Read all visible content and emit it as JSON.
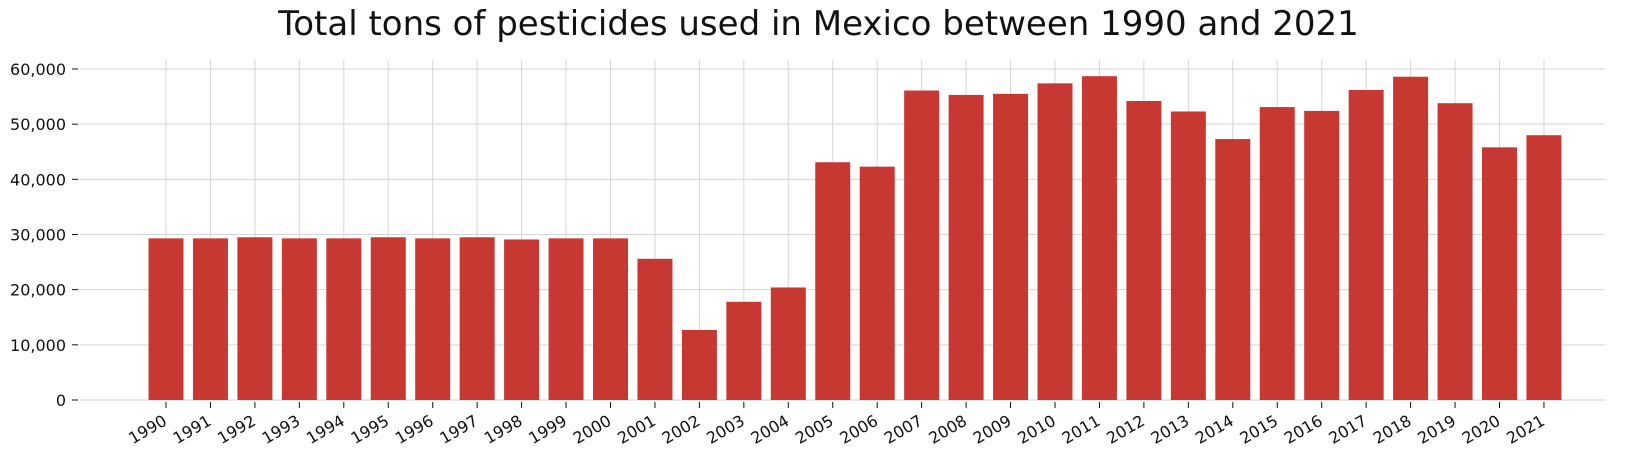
{
  "chart_data": {
    "type": "bar",
    "title": "Total tons of pesticides used in Mexico between 1990 and 2021",
    "xlabel": "",
    "ylabel": "",
    "categories": [
      "1990",
      "1991",
      "1992",
      "1993",
      "1994",
      "1995",
      "1996",
      "1997",
      "1998",
      "1999",
      "2000",
      "2001",
      "2002",
      "2003",
      "2004",
      "2005",
      "2006",
      "2007",
      "2008",
      "2009",
      "2010",
      "2011",
      "2012",
      "2013",
      "2014",
      "2015",
      "2016",
      "2017",
      "2018",
      "2019",
      "2020",
      "2021"
    ],
    "values": [
      29300,
      29300,
      29500,
      29300,
      29300,
      29500,
      29300,
      29500,
      29100,
      29300,
      29300,
      25600,
      12700,
      17800,
      20400,
      43100,
      42300,
      56100,
      55300,
      55500,
      57400,
      58700,
      54200,
      52300,
      47300,
      53100,
      52400,
      56200,
      58600,
      53800,
      45800,
      48000
    ],
    "ylim": [
      0,
      60000
    ],
    "yticks": [
      0,
      10000,
      20000,
      30000,
      40000,
      50000,
      60000
    ],
    "ytick_labels": [
      "0",
      "10,000",
      "20,000",
      "30,000",
      "40,000",
      "50,000",
      "60,000"
    ],
    "grid": true,
    "colors": {
      "bar": "#c83833",
      "grid": "#d5d5d5",
      "text": "#111111"
    }
  }
}
